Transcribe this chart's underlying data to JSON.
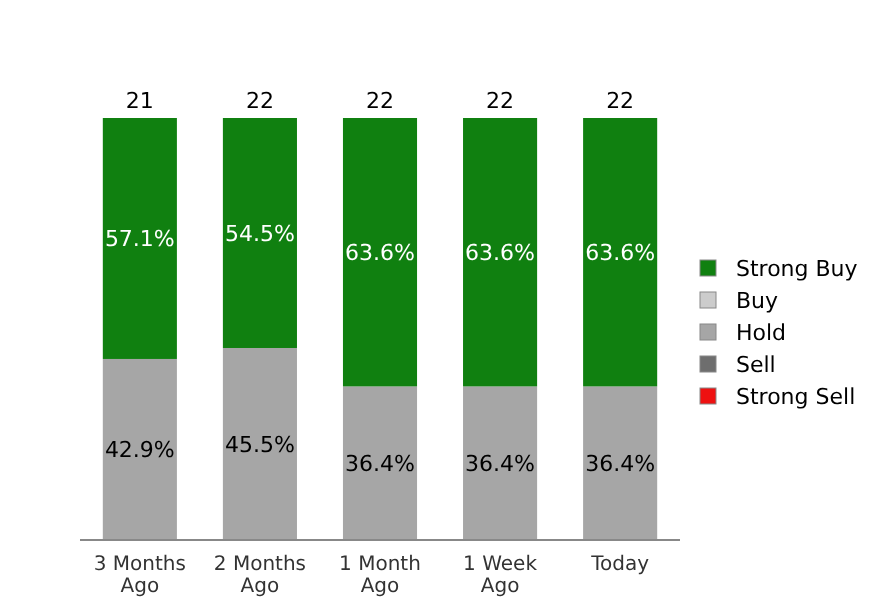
{
  "chart_data": {
    "type": "bar",
    "stacked": true,
    "categories": [
      "3 Months Ago",
      "2 Months Ago",
      "1 Month Ago",
      "1 Week Ago",
      "Today"
    ],
    "series": [
      {
        "name": "Strong Sell",
        "color": "#ee1111",
        "values": [
          null,
          null,
          null,
          null,
          null
        ]
      },
      {
        "name": "Sell",
        "color": "#6e6e6e",
        "values": [
          null,
          null,
          null,
          null,
          null
        ]
      },
      {
        "name": "Hold",
        "color": "#a6a6a6",
        "values": [
          42.9,
          45.5,
          36.4,
          36.4,
          36.4
        ],
        "value_labels": [
          "42.9%",
          "45.5%",
          "36.4%",
          "36.4%",
          "36.4%"
        ]
      },
      {
        "name": "Buy",
        "color": "#cccccc",
        "values": [
          null,
          null,
          null,
          null,
          null
        ]
      },
      {
        "name": "Strong Buy",
        "color": "#108010",
        "values": [
          57.1,
          54.5,
          63.6,
          63.6,
          63.6
        ],
        "value_labels": [
          "57.1%",
          "54.5%",
          "63.6%",
          "63.6%",
          "63.6%"
        ]
      }
    ],
    "annotations": [
      {
        "text": "21",
        "x": "3 Months Ago",
        "y": 100
      },
      {
        "text": "22",
        "x": "2 Months Ago",
        "y": 100
      },
      {
        "text": "22",
        "x": "1 Month Ago",
        "y": 100
      },
      {
        "text": "22",
        "x": "1 Week Ago",
        "y": 100
      },
      {
        "text": "22",
        "x": "Today",
        "y": 100
      }
    ],
    "legend": "right"
  }
}
